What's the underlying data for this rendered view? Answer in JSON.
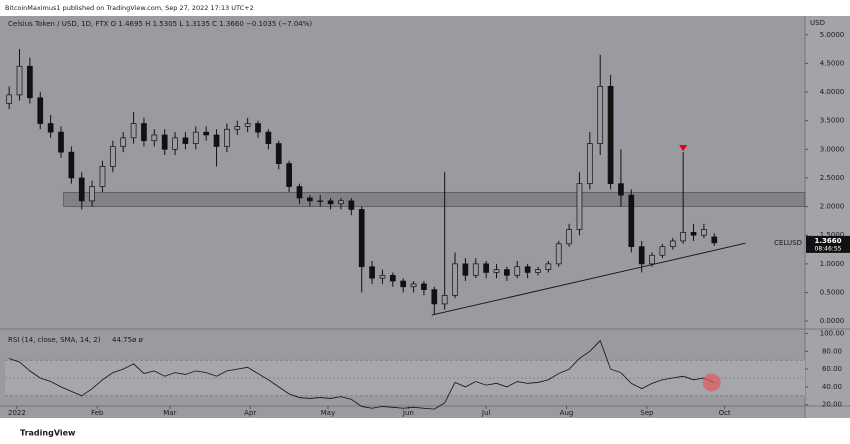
{
  "chart_data": {
    "type": "candlestick",
    "header": "BitcoinMaximus1 published on TradingView.com, Sep 27, 2022 17:13 UTC+2",
    "legend": "Celsius Token / USD, 1D, FTX  O 1.4695  H 1.5305  L 1.3135  C 1.3660  −0.1035 (−7.04%)",
    "axis_unit": "USD",
    "footer": "TradingView",
    "color": "#111111",
    "up_fill": "#9a9ba0",
    "x": [
      -3,
      1,
      5,
      9,
      13,
      17,
      21,
      25,
      29,
      33,
      37,
      41,
      45,
      49,
      53,
      57,
      61,
      65,
      69,
      73,
      77,
      81,
      85,
      89,
      93,
      97,
      101,
      105,
      109,
      113,
      117,
      121,
      125,
      129,
      133,
      137,
      141,
      145,
      149,
      153,
      157,
      161,
      165,
      169,
      173,
      177,
      181,
      185,
      189,
      193,
      197,
      201,
      205,
      209,
      213,
      217,
      221,
      225,
      229,
      233,
      237,
      241,
      245,
      249,
      253,
      257,
      261,
      265,
      269
    ],
    "open": [
      3.8,
      3.95,
      4.45,
      3.9,
      3.45,
      3.3,
      2.95,
      2.5,
      2.1,
      2.35,
      2.7,
      3.05,
      3.2,
      3.45,
      3.15,
      3.25,
      3.0,
      3.2,
      3.1,
      3.3,
      3.25,
      3.05,
      3.35,
      3.4,
      3.45,
      3.3,
      3.1,
      2.75,
      2.35,
      2.15,
      2.1,
      2.1,
      2.05,
      2.1,
      1.95,
      0.95,
      0.75,
      0.8,
      0.7,
      0.6,
      0.65,
      0.55,
      0.3,
      0.45,
      1.0,
      0.8,
      1.0,
      0.85,
      0.9,
      0.8,
      0.95,
      0.85,
      0.9,
      1.0,
      1.35,
      1.6,
      2.4,
      3.1,
      4.1,
      2.4,
      2.2,
      1.3,
      1.0,
      1.15,
      1.3,
      1.4,
      1.55,
      1.5,
      1.4695
    ],
    "high": [
      4.1,
      4.75,
      4.6,
      4.0,
      3.6,
      3.4,
      3.05,
      2.6,
      2.45,
      2.8,
      3.15,
      3.3,
      3.65,
      3.55,
      3.35,
      3.35,
      3.3,
      3.3,
      3.4,
      3.4,
      3.35,
      3.45,
      3.5,
      3.55,
      3.5,
      3.35,
      3.15,
      2.8,
      2.4,
      2.2,
      2.2,
      2.15,
      2.15,
      2.15,
      2.0,
      1.05,
      0.9,
      0.85,
      0.75,
      0.7,
      0.7,
      0.6,
      2.6,
      1.2,
      1.1,
      1.1,
      1.05,
      1.0,
      0.95,
      1.05,
      1.0,
      0.95,
      1.05,
      1.4,
      1.7,
      2.6,
      3.3,
      4.65,
      4.3,
      3.0,
      2.3,
      1.4,
      1.2,
      1.35,
      1.45,
      2.95,
      1.7,
      1.7,
      1.5305
    ],
    "low": [
      3.7,
      3.85,
      3.8,
      3.35,
      3.2,
      2.85,
      2.4,
      1.95,
      2.0,
      2.25,
      2.6,
      2.95,
      3.1,
      3.05,
      3.05,
      2.9,
      2.9,
      3.0,
      3.0,
      3.15,
      2.7,
      2.95,
      3.25,
      3.3,
      3.2,
      3.0,
      2.65,
      2.25,
      2.05,
      2.0,
      2.0,
      1.95,
      1.95,
      1.85,
      0.5,
      0.65,
      0.65,
      0.6,
      0.5,
      0.5,
      0.45,
      0.12,
      0.2,
      0.4,
      0.7,
      0.75,
      0.75,
      0.75,
      0.7,
      0.75,
      0.75,
      0.8,
      0.85,
      0.95,
      1.3,
      1.5,
      2.3,
      2.9,
      2.3,
      2.0,
      1.2,
      0.85,
      0.95,
      1.1,
      1.25,
      1.35,
      1.4,
      1.45,
      1.3135
    ],
    "close": [
      3.95,
      4.45,
      3.9,
      3.45,
      3.3,
      2.95,
      2.5,
      2.1,
      2.35,
      2.7,
      3.05,
      3.2,
      3.45,
      3.15,
      3.25,
      3.0,
      3.2,
      3.1,
      3.3,
      3.25,
      3.05,
      3.35,
      3.4,
      3.45,
      3.3,
      3.1,
      2.75,
      2.35,
      2.15,
      2.1,
      2.1,
      2.05,
      2.1,
      1.95,
      0.95,
      0.75,
      0.8,
      0.7,
      0.6,
      0.65,
      0.55,
      0.3,
      0.45,
      1.0,
      0.8,
      1.0,
      0.85,
      0.9,
      0.8,
      0.95,
      0.85,
      0.9,
      1.0,
      1.35,
      1.6,
      2.4,
      3.1,
      4.1,
      2.4,
      2.2,
      1.3,
      1.0,
      1.15,
      1.3,
      1.4,
      1.55,
      1.5,
      1.6,
      1.366
    ],
    "xlim": [
      -4.6,
      304
    ],
    "xticks": [
      {
        "value": 0,
        "label": "2022"
      },
      {
        "value": 31,
        "label": "Feb"
      },
      {
        "value": 59,
        "label": "Mar"
      },
      {
        "value": 90,
        "label": "Apr"
      },
      {
        "value": 120,
        "label": "May"
      },
      {
        "value": 151,
        "label": "Jun"
      },
      {
        "value": 181,
        "label": "Jul"
      },
      {
        "value": 212,
        "label": "Aug"
      },
      {
        "value": 243,
        "label": "Sep"
      },
      {
        "value": 273,
        "label": "Oct"
      }
    ],
    "ylim": [
      -0.12,
      5.31
    ],
    "yticks": [
      {
        "value": 0,
        "label": "0.0000"
      },
      {
        "value": 0.5,
        "label": "0.5000"
      },
      {
        "value": 1,
        "label": "1.0000"
      },
      {
        "value": 1.5,
        "label": "1.5000"
      },
      {
        "value": 2,
        "label": "2.0000"
      },
      {
        "value": 2.5,
        "label": "2.5000"
      },
      {
        "value": 3,
        "label": "3.0000"
      },
      {
        "value": 3.5,
        "label": "3.5000"
      },
      {
        "value": 4,
        "label": "4.0000"
      },
      {
        "value": 4.5,
        "label": "4.5000"
      },
      {
        "value": 5,
        "label": "5.0000"
      }
    ],
    "price_tag": {
      "symbol": "CELUSD",
      "price": "1.3660",
      "countdown": "08:46:55",
      "value": 1.366
    },
    "zone": {
      "x_start": 18,
      "y": [
        2.0,
        2.25
      ]
    },
    "trendline": {
      "x": [
        160,
        281
      ],
      "y": [
        0.105,
        1.36
      ]
    },
    "marker": {
      "x": 257,
      "y": 3.02,
      "color": "#e00000"
    },
    "rsi": {
      "name": "RSI (14, close, SMA, 14, 2)",
      "last_label": "44.75",
      "extra": "ø ø",
      "color": "#111111",
      "values": [
        72,
        68,
        58,
        50,
        46,
        40,
        35,
        30,
        38,
        48,
        56,
        60,
        66,
        55,
        58,
        52,
        56,
        54,
        58,
        56,
        52,
        58,
        60,
        62,
        55,
        48,
        40,
        32,
        28,
        27,
        28,
        27,
        29,
        26,
        18,
        16,
        18,
        17,
        16,
        17,
        16,
        15,
        22,
        45,
        40,
        46,
        42,
        44,
        40,
        46,
        44,
        45,
        48,
        55,
        60,
        72,
        80,
        92,
        60,
        56,
        44,
        38,
        44,
        48,
        50,
        52,
        48,
        50,
        44.75
      ],
      "ylim": [
        14,
        104
      ],
      "yticks": [
        {
          "value": 20,
          "label": "20.00"
        },
        {
          "value": 40,
          "label": "40.00"
        },
        {
          "value": 60,
          "label": "60.00"
        },
        {
          "value": 80,
          "label": "80.00"
        },
        {
          "value": 100,
          "label": "100.00"
        }
      ],
      "bands": [
        30,
        70
      ],
      "midline": 50,
      "highlight": {
        "x": 268,
        "y": 45,
        "color": "#e05a5a"
      }
    }
  }
}
